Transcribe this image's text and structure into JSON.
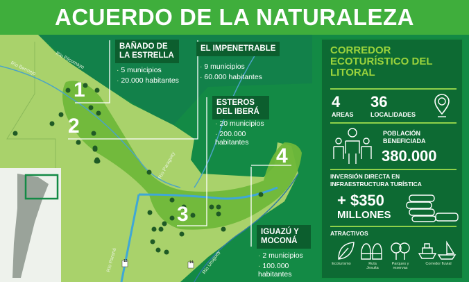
{
  "title": "ACUERDO DE LA NATURALEZA",
  "colors": {
    "title_bar": "#3fae3c",
    "panel": "#0d6a33",
    "accent": "#9bd33c",
    "land": "#a9d26b",
    "corridor": "#6fb83a",
    "forest": "#138a45"
  },
  "rivers": [
    "Río Bermejo",
    "Río Pilcomayo",
    "Río Paraguay",
    "Río Paraná",
    "Río Uruguay"
  ],
  "zones": [
    {
      "number": "1",
      "name": "BAÑADO DE LA ESTRELLA",
      "items": [
        "5 municipios",
        "20.000 habitantes"
      ]
    },
    {
      "number": "2",
      "name": "EL IMPENETRABLE",
      "items": [
        "9 municipios",
        "60.000 habitantes"
      ]
    },
    {
      "number": "3",
      "name": "ESTEROS DEL IBERÁ",
      "items": [
        "20 municipios",
        "200.000 habitantes"
      ]
    },
    {
      "number": "4",
      "name": "IGUAZÚ Y MOCONÁ",
      "items": [
        "2 municipios",
        "100.000 habitantes"
      ]
    }
  ],
  "road_markers": [
    "12",
    "14"
  ],
  "panel": {
    "title": "CORREDOR ECOTURÍSTICO DEL LITORAL",
    "areas_value": "4",
    "areas_label": "AREAS",
    "localidades_value": "36",
    "localidades_label": "LOCALIDADES",
    "poblacion_label": "POBLACIÓN BENEFICIADA",
    "poblacion_value": "380.000",
    "inversion_label": "INVERSIÓN DIRECTA EN INFRAESTRUCTURA TURÍSTICA",
    "inversion_value": "+ $350",
    "inversion_unit": "MILLONES",
    "atractivos_label": "ATRACTIVOS",
    "atractivos": [
      "Ecoturismo",
      "Ruta Jesuita",
      "Parques y reservas",
      "Corredor fluvial"
    ],
    "icons": [
      "map-pin-icon",
      "people-icon",
      "coins-icon",
      "leaf-icon",
      "church-icon",
      "trees-icon",
      "boats-icon"
    ]
  }
}
